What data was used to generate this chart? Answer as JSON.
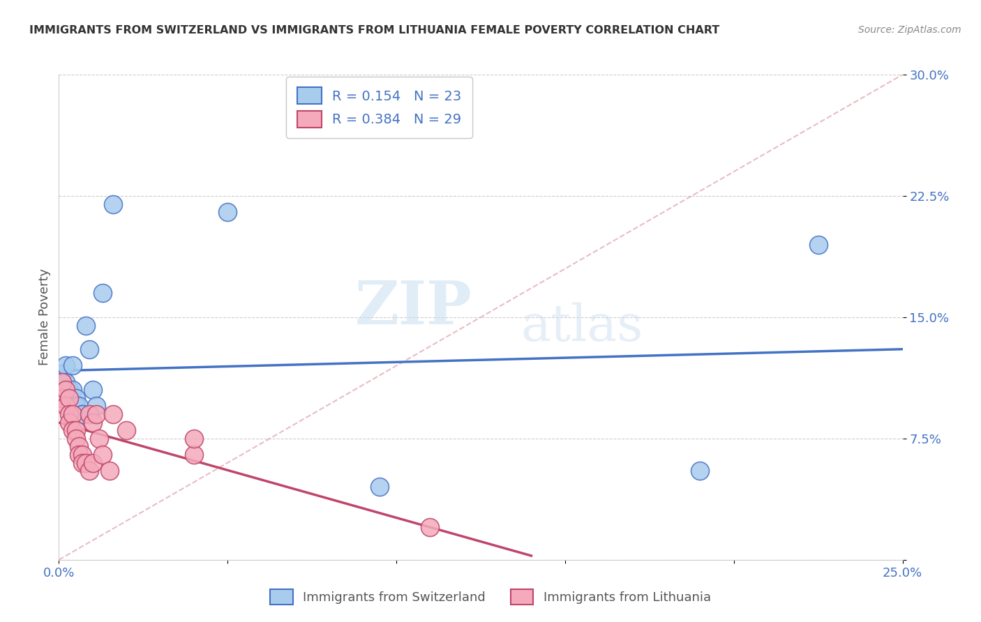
{
  "title": "IMMIGRANTS FROM SWITZERLAND VS IMMIGRANTS FROM LITHUANIA FEMALE POVERTY CORRELATION CHART",
  "source": "Source: ZipAtlas.com",
  "ylabel": "Female Poverty",
  "xlim": [
    0.0,
    0.25
  ],
  "ylim": [
    0.0,
    0.3
  ],
  "xticks": [
    0.0,
    0.05,
    0.1,
    0.15,
    0.2,
    0.25
  ],
  "xticklabels": [
    "0.0%",
    "",
    "",
    "",
    "",
    "25.0%"
  ],
  "yticks": [
    0.0,
    0.075,
    0.15,
    0.225,
    0.3
  ],
  "yticklabels_right": [
    "",
    "7.5%",
    "15.0%",
    "22.5%",
    "30.0%"
  ],
  "r_switzerland": 0.154,
  "n_switzerland": 23,
  "r_lithuania": 0.384,
  "n_lithuania": 29,
  "color_switzerland": "#A8CCEE",
  "color_lithuania": "#F4AABB",
  "line_color_switzerland": "#4472C4",
  "line_color_lithuania": "#C0456A",
  "watermark_zip": "ZIP",
  "watermark_atlas": "atlas",
  "legend_labels": [
    "Immigrants from Switzerland",
    "Immigrants from Lithuania"
  ],
  "switzerland_x": [
    0.001,
    0.001,
    0.002,
    0.002,
    0.003,
    0.003,
    0.004,
    0.004,
    0.005,
    0.005,
    0.006,
    0.007,
    0.007,
    0.008,
    0.009,
    0.01,
    0.011,
    0.013,
    0.016,
    0.05,
    0.095,
    0.19,
    0.225
  ],
  "switzerland_y": [
    0.115,
    0.11,
    0.12,
    0.11,
    0.105,
    0.1,
    0.12,
    0.105,
    0.1,
    0.095,
    0.095,
    0.09,
    0.09,
    0.145,
    0.13,
    0.105,
    0.095,
    0.165,
    0.22,
    0.215,
    0.045,
    0.055,
    0.195
  ],
  "lithuania_x": [
    0.001,
    0.001,
    0.002,
    0.002,
    0.003,
    0.003,
    0.003,
    0.004,
    0.004,
    0.005,
    0.005,
    0.006,
    0.006,
    0.007,
    0.007,
    0.008,
    0.009,
    0.009,
    0.01,
    0.01,
    0.011,
    0.012,
    0.013,
    0.015,
    0.016,
    0.02,
    0.04,
    0.04,
    0.11
  ],
  "lithuania_y": [
    0.11,
    0.1,
    0.105,
    0.095,
    0.1,
    0.09,
    0.085,
    0.09,
    0.08,
    0.08,
    0.075,
    0.07,
    0.065,
    0.065,
    0.06,
    0.06,
    0.055,
    0.09,
    0.06,
    0.085,
    0.09,
    0.075,
    0.065,
    0.055,
    0.09,
    0.08,
    0.065,
    0.075,
    0.02
  ]
}
